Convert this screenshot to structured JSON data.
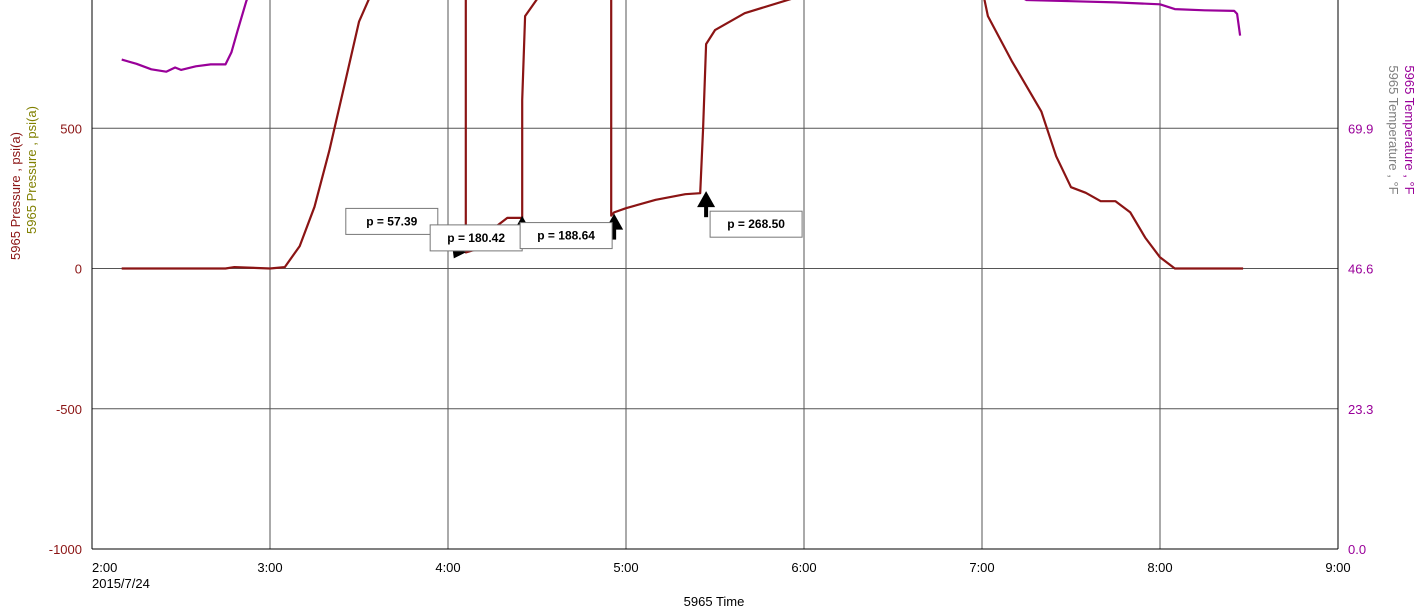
{
  "chart_data": {
    "type": "line",
    "xlabel": "5965 Time",
    "x_date_label": "2015/7/24",
    "x_ticks": [
      "2:00",
      "3:00",
      "4:00",
      "5:00",
      "6:00",
      "7:00",
      "8:00",
      "9:00"
    ],
    "xlim": [
      "2:00",
      "9:00"
    ],
    "ylabel_left": [
      "5965 Pressure , psi(a)",
      "5965 Pressure , psi(a)"
    ],
    "ylabel_right": [
      "5965 Temperature , °F",
      "5965 Temperature , °F"
    ],
    "y_ticks_left": [
      -1000,
      -500,
      0,
      500
    ],
    "y_ticks_right": [
      0.0,
      23.3,
      46.6,
      69.9
    ],
    "ylim_left": [
      -1000,
      1000
    ],
    "ylim_right": [
      0.0,
      93.2
    ],
    "grid": true,
    "colors": {
      "pressure": "#8b1414",
      "temperature": "#990099",
      "pressure_label_alt": "#808000",
      "temperature_label_alt": "#808080",
      "axis_text": "#8b1414",
      "right_axis_text": "#990099"
    },
    "series": [
      {
        "name": "5965 Pressure",
        "axis": "left",
        "color": "#8b1414",
        "x": [
          "2:10",
          "2:45",
          "2:48",
          "3:00",
          "3:05",
          "3:10",
          "3:15",
          "3:20",
          "3:25",
          "3:30",
          "3:35",
          "3:37",
          "3:40",
          "3:50",
          "4:00",
          "4:06",
          "4:06",
          "4:10",
          "4:10",
          "4:15",
          "4:20",
          "4:25",
          "4:25",
          "4:26",
          "4:30",
          "4:35",
          "4:40",
          "4:45",
          "4:50",
          "4:55",
          "4:55",
          "4:56",
          "5:00",
          "5:10",
          "5:20",
          "5:25",
          "5:26",
          "5:27",
          "5:30",
          "5:40",
          "6:00",
          "6:30",
          "7:00",
          "7:02",
          "7:10",
          "7:20",
          "7:25",
          "7:30",
          "7:35",
          "7:40",
          "7:45",
          "7:50",
          "7:55",
          "8:00",
          "8:05",
          "8:10",
          "8:20",
          "8:28"
        ],
        "y": [
          0,
          0,
          5,
          0,
          5,
          80,
          220,
          420,
          650,
          880,
          1000,
          1050,
          1100,
          1100,
          1100,
          1100,
          57.39,
          70,
          100,
          140,
          180.42,
          180.42,
          600,
          900,
          960,
          990,
          1000,
          1000,
          1000,
          1000,
          188.64,
          200,
          215,
          245,
          265,
          268.5,
          500,
          800,
          850,
          910,
          975,
          1030,
          1000,
          900,
          740,
          560,
          400,
          290,
          270,
          240,
          240,
          200,
          110,
          40,
          0,
          0,
          0,
          0
        ]
      },
      {
        "name": "5965 Temperature",
        "axis": "right",
        "color": "#990099",
        "x": [
          "2:10",
          "2:15",
          "2:20",
          "2:25",
          "2:28",
          "2:30",
          "2:35",
          "2:40",
          "2:45",
          "2:47",
          "2:49",
          "2:52",
          "2:55",
          "7:00",
          "7:15",
          "7:30",
          "7:45",
          "8:00",
          "8:05",
          "8:15",
          "8:25",
          "8:26",
          "8:27"
        ],
        "y": [
          81.3,
          80.6,
          79.7,
          79.3,
          80.0,
          79.6,
          80.2,
          80.5,
          80.5,
          82.5,
          86.0,
          91.0,
          95.0,
          95.0,
          91.2,
          91.0,
          90.8,
          90.5,
          89.7,
          89.5,
          89.4,
          88.9,
          85.3
        ]
      }
    ],
    "annotations": [
      {
        "label": "p = 57.39",
        "x": "4:06",
        "y": 57.39
      },
      {
        "label": "p = 180.42",
        "x": "4:25",
        "y": 180.42
      },
      {
        "label": "p = 188.64",
        "x": "4:56",
        "y": 188.64
      },
      {
        "label": "p = 268.50",
        "x": "5:27",
        "y": 268.5
      }
    ]
  }
}
